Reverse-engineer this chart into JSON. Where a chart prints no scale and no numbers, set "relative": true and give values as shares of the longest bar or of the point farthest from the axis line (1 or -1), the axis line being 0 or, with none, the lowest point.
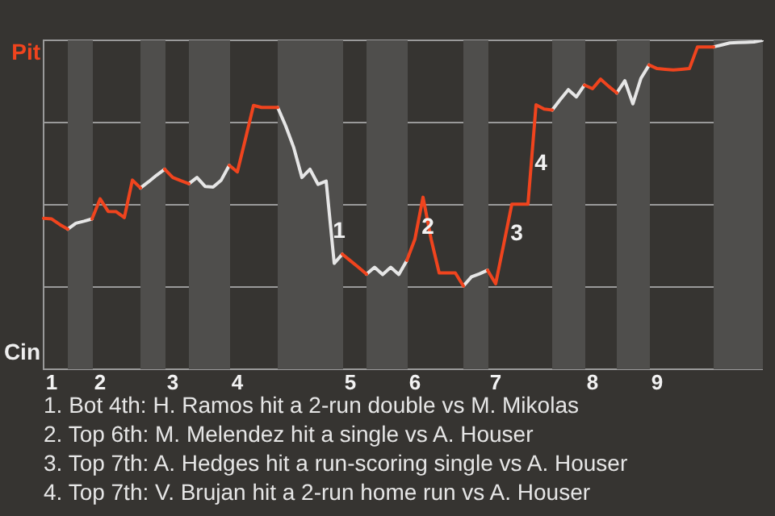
{
  "chart_data": {
    "type": "line",
    "relative": true,
    "categories": [
      null,
      "1",
      null,
      null,
      null,
      null,
      null,
      "2",
      null,
      null,
      null,
      null,
      null,
      null,
      null,
      null,
      "3",
      null,
      null,
      null,
      null,
      null,
      null,
      null,
      "4",
      null,
      null,
      null,
      null,
      null,
      null,
      null,
      null,
      null,
      null,
      null,
      null,
      null,
      "5",
      null,
      null,
      null,
      null,
      null,
      null,
      null,
      "6",
      null,
      null,
      null,
      null,
      null,
      null,
      null,
      null,
      null,
      "7",
      null,
      null,
      null,
      null,
      null,
      null,
      null,
      null,
      null,
      null,
      null,
      "8",
      null,
      null,
      null,
      null,
      null,
      null,
      null,
      "9",
      null,
      null,
      null,
      null,
      null,
      null,
      null,
      null,
      null,
      null,
      null,
      null,
      null
    ],
    "grid": "y",
    "legend": false,
    "marker": "none",
    "line_style": "solid",
    "series": [
      {
        "color": "#f0441e",
        "values": [
          0.459,
          0.457,
          0.44,
          0.426,
          null,
          null,
          0.457,
          0.518,
          0.48,
          0.479,
          0.461,
          0.575,
          0.551,
          null,
          null,
          0.608,
          0.583,
          0.573,
          0.564,
          null,
          null,
          null,
          null,
          0.62,
          0.6,
          0.7,
          0.802,
          0.796,
          0.796,
          0.796,
          null,
          null,
          null,
          null,
          null,
          null,
          null,
          0.35,
          0.33,
          0.31,
          0.289,
          null,
          null,
          null,
          null,
          0.331,
          0.396,
          0.523,
          0.396,
          0.293,
          0.293,
          0.293,
          0.253,
          null,
          null,
          0.301,
          0.26,
          0.38,
          0.502,
          0.502,
          0.502,
          0.804,
          0.791,
          0.788,
          null,
          null,
          null,
          0.864,
          0.853,
          0.882,
          0.86,
          0.84,
          null,
          null,
          null,
          0.925,
          0.914,
          0.912,
          0.91,
          0.912,
          0.914,
          0.98,
          0.98,
          0.98,
          null,
          null,
          null,
          null,
          null,
          null
        ]
      },
      {
        "color": "#e6e6e6",
        "values": [
          null,
          null,
          null,
          0.426,
          0.444,
          0.45,
          0.457,
          null,
          null,
          null,
          null,
          null,
          0.551,
          0.57,
          0.59,
          0.608,
          null,
          null,
          0.564,
          0.583,
          0.556,
          0.554,
          0.575,
          0.62,
          null,
          null,
          null,
          null,
          null,
          0.796,
          0.739,
          0.673,
          0.583,
          0.608,
          0.562,
          0.572,
          0.322,
          0.35,
          null,
          null,
          0.289,
          0.31,
          0.288,
          0.31,
          0.288,
          0.331,
          null,
          null,
          null,
          null,
          null,
          null,
          0.253,
          0.281,
          0.29,
          0.301,
          null,
          null,
          null,
          null,
          null,
          null,
          null,
          0.788,
          0.82,
          0.85,
          0.828,
          0.864,
          null,
          null,
          null,
          0.84,
          0.877,
          0.807,
          0.885,
          0.925,
          null,
          null,
          null,
          null,
          null,
          null,
          null,
          0.98,
          0.986,
          0.992,
          0.993,
          0.994,
          0.995,
          1
        ]
      }
    ],
    "annotations": [
      "Pit",
      "Cin",
      {
        "text": "1",
        "y": 0.322
      },
      {
        "text": "2",
        "y": 0.523
      },
      {
        "text": "3",
        "y": 0.502
      },
      {
        "text": "4",
        "y": 0.804
      },
      "1. Bot 4th: H. Ramos hit a 2-run double vs M. Mikolas",
      "2. Top 6th: M. Melendez hit a single vs A. Houser",
      "3. Top 7th: A. Hedges hit a run-scoring single vs A. Houser",
      "4. Top 7th: V. Brujan hit a 2-run home run vs A. Houser"
    ]
  }
}
